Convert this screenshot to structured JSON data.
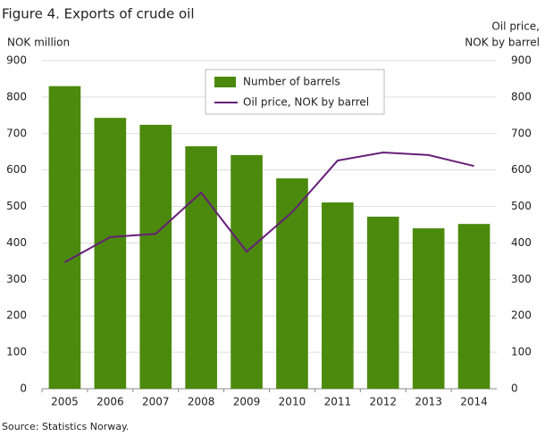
{
  "chart_data": {
    "type": "bar_line",
    "title": "Figure 4. Exports of crude oil",
    "y_label": "NOK million",
    "y2_label": [
      "Oil price,",
      "NOK by barrel"
    ],
    "source": "Source: Statistics Norway.",
    "categories": [
      "2005",
      "2006",
      "2007",
      "2008",
      "2009",
      "2010",
      "2011",
      "2012",
      "2013",
      "2014"
    ],
    "series": [
      {
        "name": "Number of barrels",
        "color": "#4b8a0c",
        "kind": "bar",
        "values": [
          830,
          743,
          724,
          665,
          641,
          577,
          511,
          472,
          440,
          452
        ]
      },
      {
        "name": "Oil price, NOK by barrel",
        "color": "#661e78",
        "kind": "line",
        "axis": "y2",
        "values": [
          347,
          416,
          425,
          538,
          376,
          484,
          626,
          648,
          641,
          611
        ]
      }
    ],
    "ylim": [
      0,
      900
    ],
    "yticks": [
      0,
      100,
      200,
      300,
      400,
      500,
      600,
      700,
      800,
      900
    ],
    "y2lim": [
      0,
      900
    ],
    "y2ticks": [
      0,
      100,
      200,
      300,
      400,
      500,
      600,
      700,
      800,
      900
    ],
    "grid": true
  }
}
